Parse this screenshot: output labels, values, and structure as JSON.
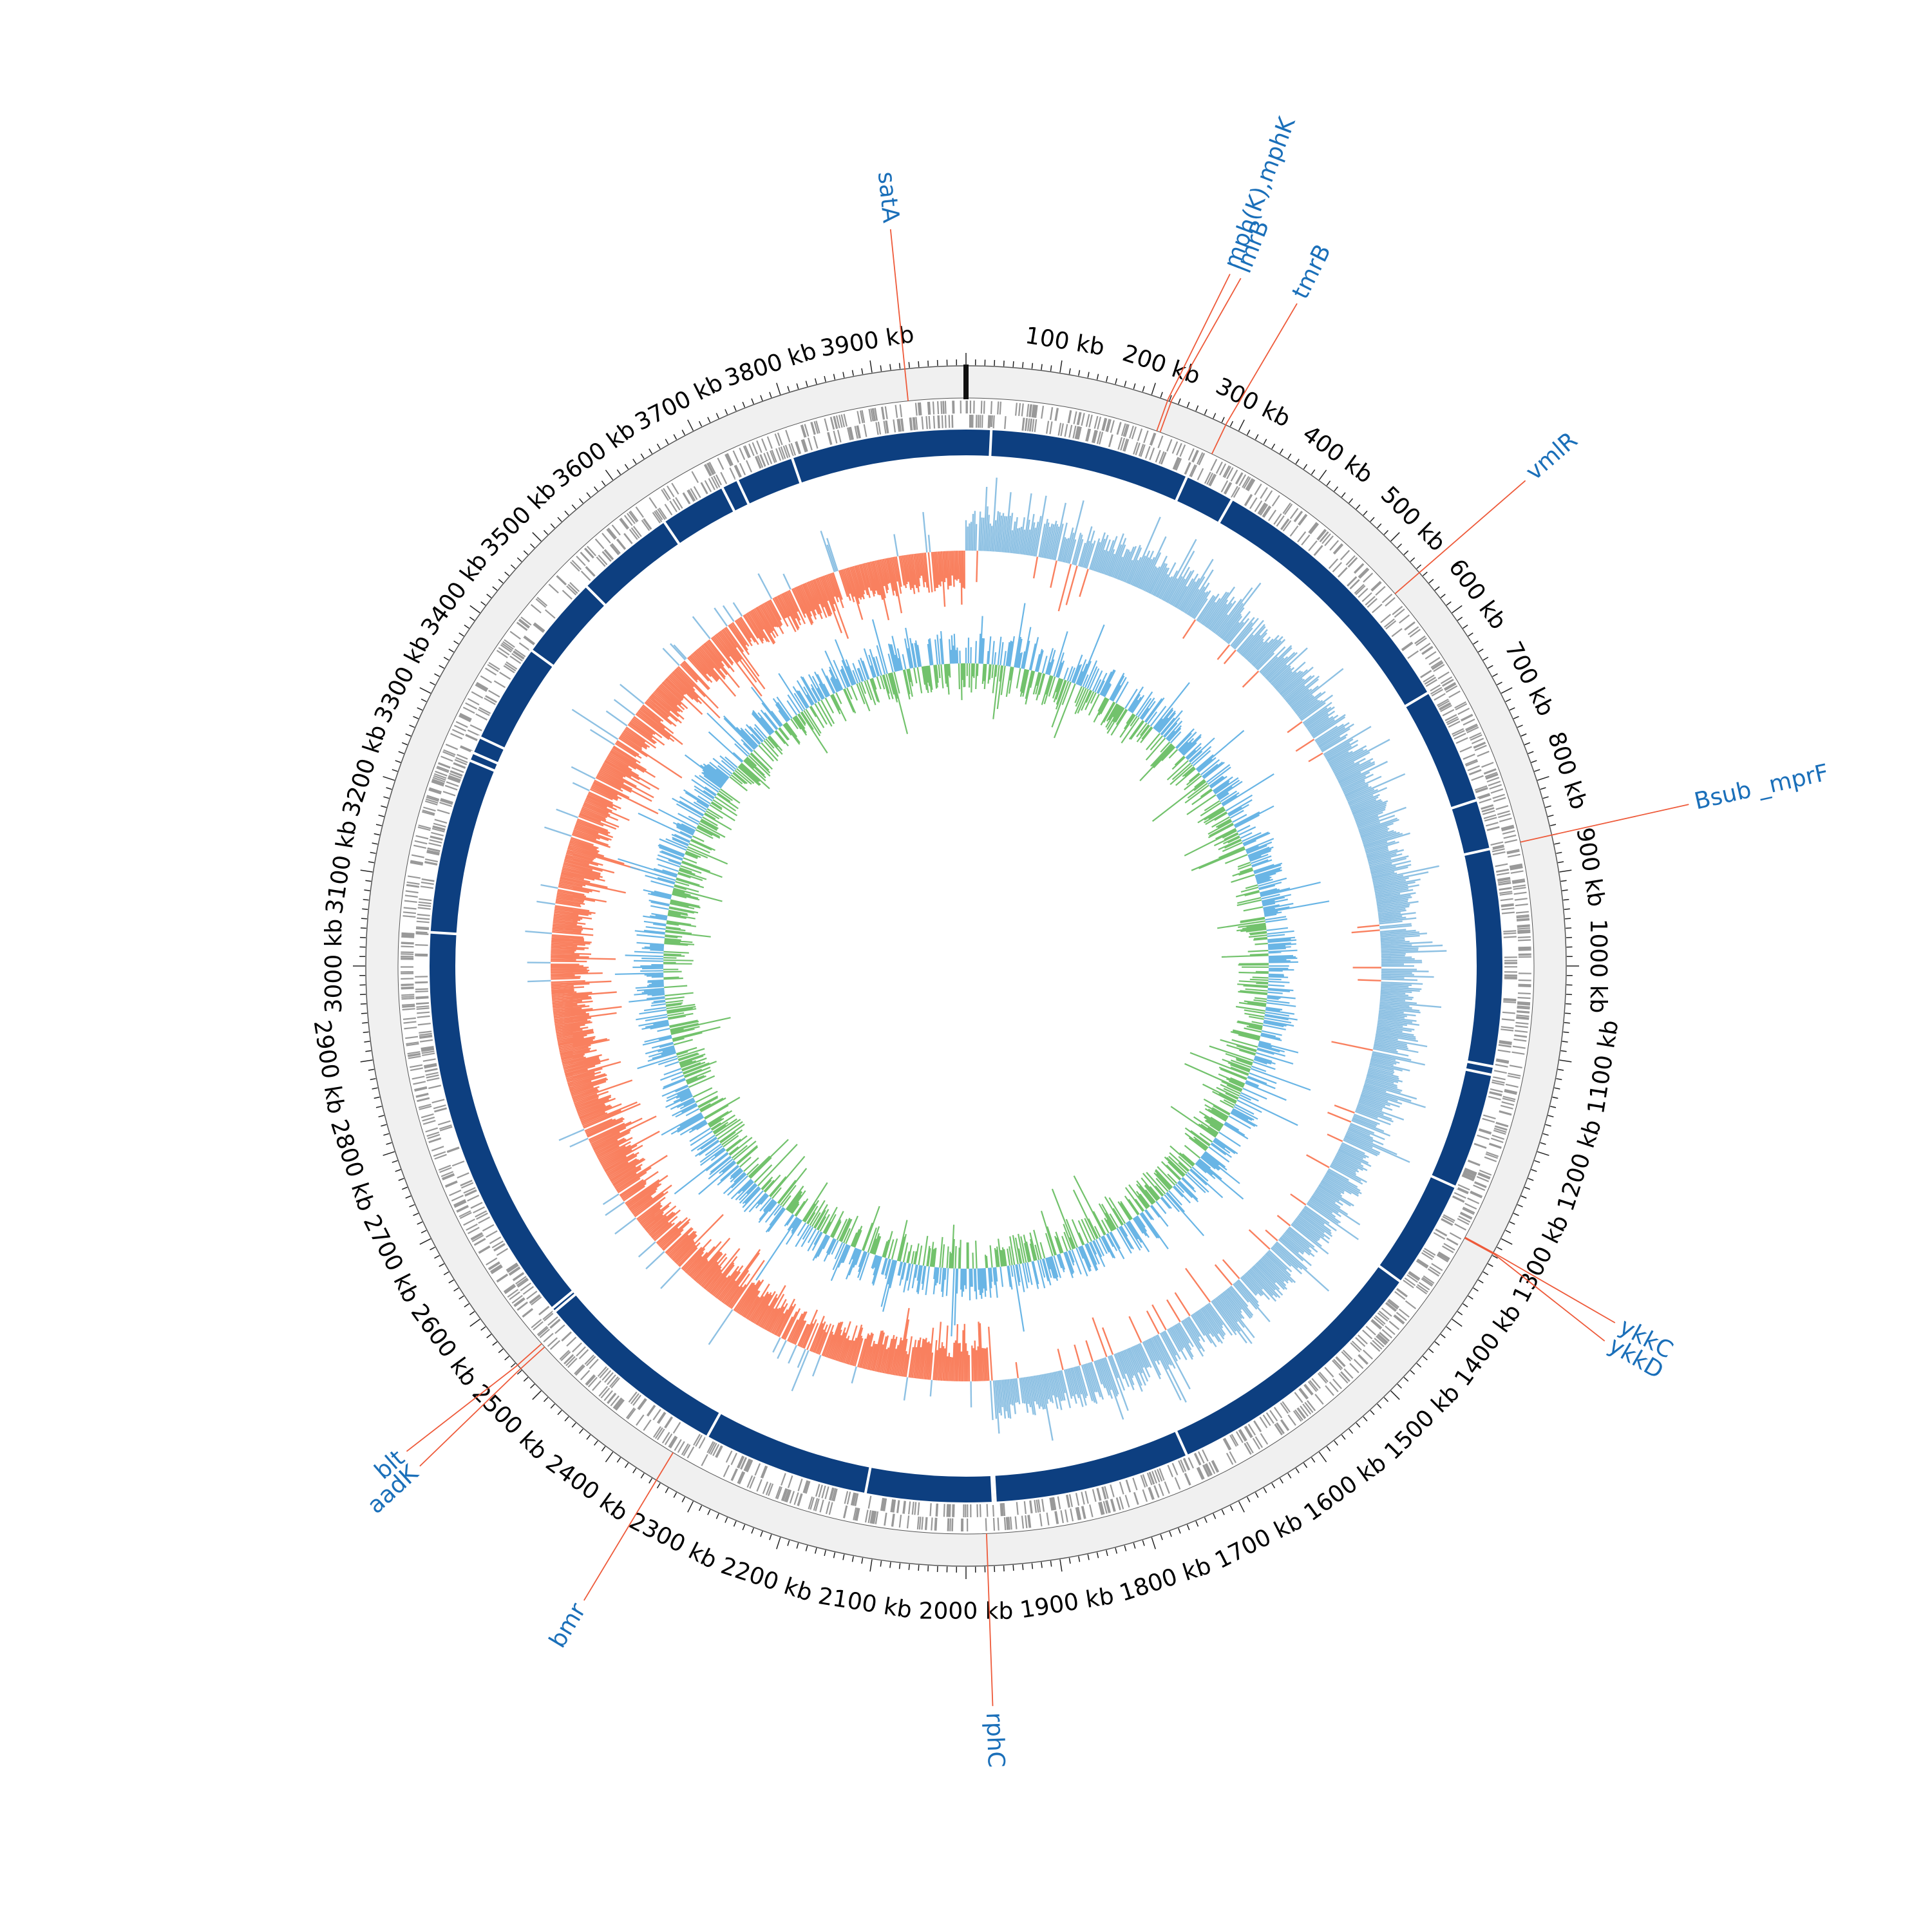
{
  "chart_data": {
    "type": "circular-genome-map",
    "genome_length_kb": 4000,
    "tick_labels": [
      "100 kb",
      "200 kb",
      "300 kb",
      "400 kb",
      "500 kb",
      "600 kb",
      "700 kb",
      "800 kb",
      "900 kb",
      "1000 kb",
      "1100 kb",
      "1200 kb",
      "1300 kb",
      "1400 kb",
      "1500 kb",
      "1600 kb",
      "1700 kb",
      "1800 kb",
      "1900 kb",
      "2000 kb",
      "2100 kb",
      "2200 kb",
      "2300 kb",
      "2400 kb",
      "2500 kb",
      "2600 kb",
      "2700 kb",
      "2800 kb",
      "2900 kb",
      "3000 kb",
      "3100 kb",
      "3200 kb",
      "3300 kb",
      "3400 kb",
      "3500 kb",
      "3600 kb",
      "3700 kb",
      "3800 kb",
      "3900 kb"
    ],
    "tick_positions_kb": [
      100,
      200,
      300,
      400,
      500,
      600,
      700,
      800,
      900,
      1000,
      1100,
      1200,
      1300,
      1400,
      1500,
      1600,
      1700,
      1800,
      1900,
      2000,
      2100,
      2200,
      2300,
      2400,
      2500,
      2600,
      2700,
      2800,
      2900,
      3000,
      3100,
      3200,
      3300,
      3400,
      3500,
      3600,
      3700,
      3800,
      3900
    ],
    "genes": [
      {
        "label": "satA",
        "position_kb": 3935
      },
      {
        "label": "mph(K),mphK",
        "position_kb": 218
      },
      {
        "label": "lmrB",
        "position_kb": 222
      },
      {
        "label": "tmrB",
        "position_kb": 285
      },
      {
        "label": "vmlR",
        "position_kb": 545
      },
      {
        "label": "Bsub _mprF",
        "position_kb": 860
      },
      {
        "label": "ykkC",
        "position_kb": 1317
      },
      {
        "label": "ykkD",
        "position_kb": 1318
      },
      {
        "label": "rphC",
        "position_kb": 1977
      },
      {
        "label": "bmr",
        "position_kb": 2345
      },
      {
        "label": "aadK",
        "position_kb": 2532
      },
      {
        "label": "blt",
        "position_kb": 2537
      }
    ],
    "backbone_gaps_kb": [
      30,
      270,
      330,
      660,
      800,
      860,
      1120,
      1130,
      1270,
      1400,
      1730,
      1965,
      1968,
      2120,
      2320,
      2555,
      2560,
      3040,
      3250,
      3260,
      3280,
      3400,
      3500,
      3620,
      3700,
      3720,
      3790
    ],
    "colors": {
      "ring_background": "#f0f0f0",
      "ring_outline": "#555555",
      "feature_marks": "#999999",
      "backbone": "#0d3f80",
      "skew_positive": "#8ec1e3",
      "skew_negative": "#f9805f",
      "gc_content_high": "#69b5e5",
      "gc_content_low": "#72c26c",
      "callout_line": "#ee5a3a",
      "gene_label": "#1a6fb9",
      "origin_mark": "#111111"
    }
  }
}
